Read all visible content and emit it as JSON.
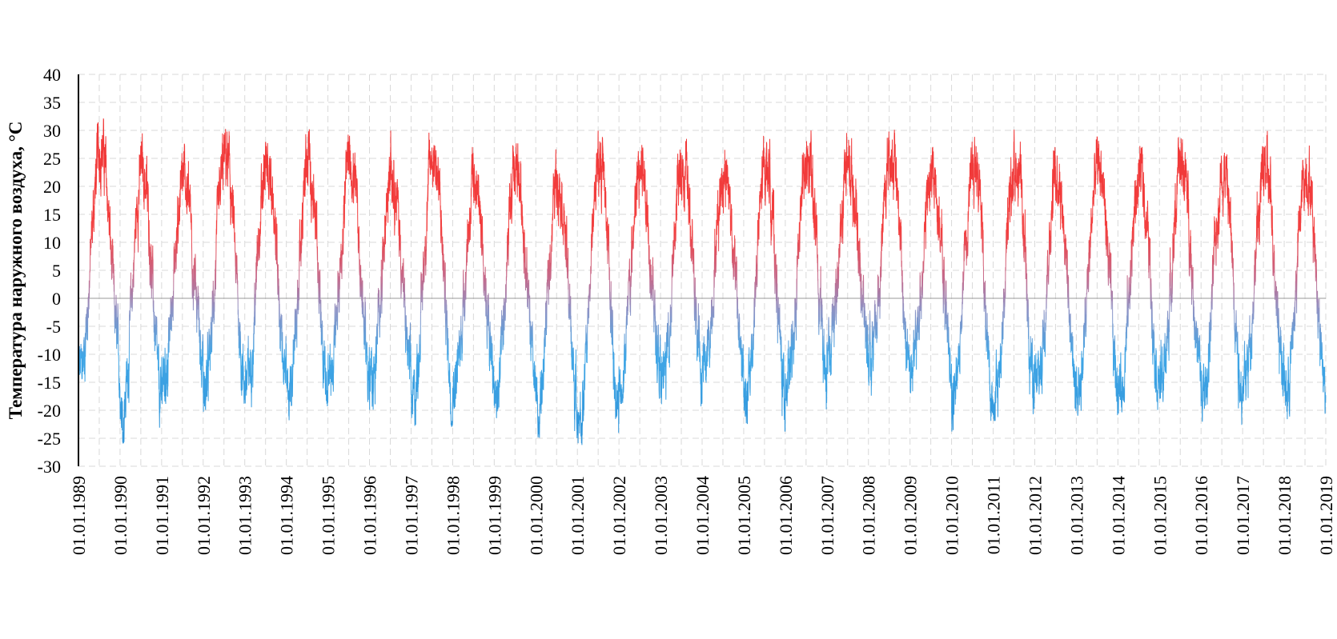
{
  "chart_data": {
    "type": "line",
    "title": "",
    "xlabel": "",
    "ylabel": "Температура наружного воздуха, °C",
    "ylim": [
      -30,
      40
    ],
    "yticks": [
      40,
      35,
      30,
      25,
      20,
      15,
      10,
      5,
      0,
      -5,
      -10,
      -15,
      -20,
      -25,
      -30
    ],
    "xticks": [
      "01.01.1989",
      "01.01.1990",
      "01.01.1991",
      "01.01.1992",
      "01.01.1993",
      "01.01.1994",
      "01.01.1995",
      "01.01.1996",
      "01.01.1997",
      "01.01.1998",
      "01.01.1999",
      "01.01.2000",
      "01.01.2001",
      "01.01.2002",
      "01.01.2003",
      "01.01.2004",
      "01.01.2005",
      "01.01.2006",
      "01.01.2007",
      "01.01.2008",
      "01.01.2009",
      "01.01.2010",
      "01.01.2011",
      "01.01.2012",
      "01.01.2013",
      "01.01.2014",
      "01.01.2015",
      "01.01.2016",
      "01.01.2017",
      "01.01.2018",
      "01.01.2019"
    ],
    "grid": true,
    "legend": "none",
    "colors": {
      "warm": "#f03030",
      "mid": "#9a86b8",
      "cold": "#2f9fe2"
    },
    "series": [
      {
        "annual_max": [
          34,
          30,
          28,
          32,
          30,
          31,
          31,
          30,
          33,
          28,
          30,
          29,
          32,
          30,
          31,
          30,
          31,
          32,
          30,
          33,
          29,
          33,
          31,
          30,
          31,
          29,
          31,
          30,
          30,
          30
        ],
        "annual_min": [
          -18,
          -26,
          -19,
          -21,
          -20,
          -22,
          -19,
          -20,
          -23,
          -20,
          -23,
          -25,
          -28,
          -19,
          -20,
          -18,
          -24,
          -20,
          -14,
          -18,
          -17,
          -24,
          -22,
          -21,
          -21,
          -21,
          -20,
          -23,
          -19,
          -22
        ]
      }
    ]
  }
}
